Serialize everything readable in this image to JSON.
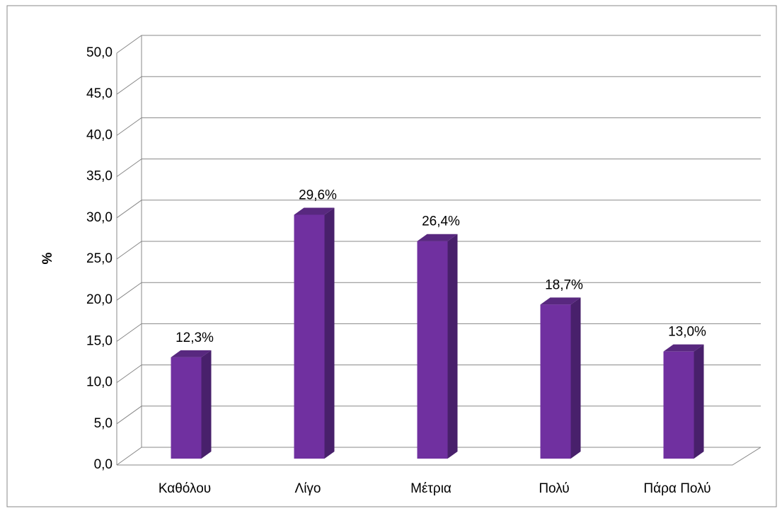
{
  "chart_data": {
    "type": "bar3d",
    "y_label": "%",
    "categories": [
      "Καθόλου",
      "Λίγο",
      "Μέτρια",
      "Πολύ",
      "Πάρα Πολύ"
    ],
    "values": [
      12.3,
      29.6,
      26.4,
      18.7,
      13.0
    ],
    "value_labels": [
      "12,3%",
      "29,6%",
      "26,4%",
      "18,7%",
      "13,0%"
    ],
    "color": "#7030a0",
    "ylim": [
      0,
      50
    ],
    "yticks": [
      {
        "value": 0,
        "label": "0,0"
      },
      {
        "value": 5,
        "label": "5,0"
      },
      {
        "value": 10,
        "label": "10,0"
      },
      {
        "value": 15,
        "label": "15,0"
      },
      {
        "value": 20,
        "label": "20,0"
      },
      {
        "value": 25,
        "label": "25,0"
      },
      {
        "value": 30,
        "label": "30,0"
      },
      {
        "value": 35,
        "label": "35,0"
      },
      {
        "value": 40,
        "label": "40,0"
      },
      {
        "value": 45,
        "label": "45,0"
      },
      {
        "value": 50,
        "label": "50,0"
      }
    ],
    "grid": true
  }
}
